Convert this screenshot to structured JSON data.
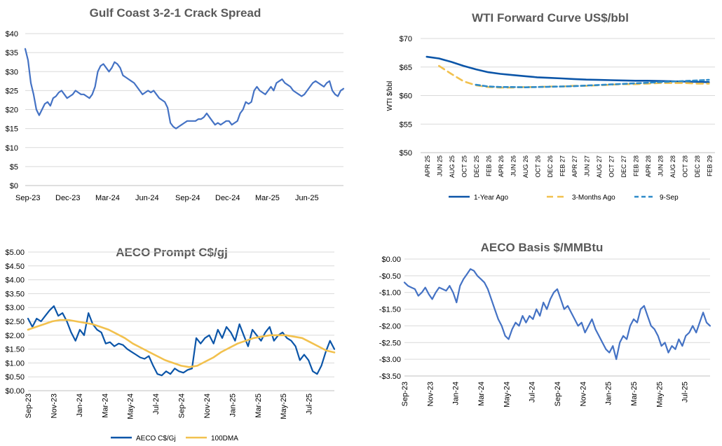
{
  "charts": [
    {
      "type": "line",
      "title": "Gulf Coast 3-2-1 Crack Spread",
      "ylim": [
        0,
        40
      ],
      "y_ticks": [
        "$0",
        "$5",
        "$10",
        "$15",
        "$20",
        "$25",
        "$30",
        "$35",
        "$40"
      ],
      "x_tick_labels": [
        "Sep-23",
        "Dec-23",
        "Mar-24",
        "Jun-24",
        "Sep-24",
        "Dec-24",
        "Mar-25",
        "Jun-25"
      ],
      "series": [
        {
          "color": "#4472C4",
          "values": [
            36,
            33,
            27,
            24,
            20,
            18.5,
            20,
            21.5,
            22,
            21,
            23,
            23.5,
            24.5,
            25,
            24,
            23,
            23.5,
            24,
            25,
            24.5,
            24,
            24,
            23.5,
            23,
            24,
            26,
            30,
            31.5,
            32,
            31,
            30,
            31,
            32.5,
            32,
            31,
            29,
            28.5,
            28,
            27.5,
            27,
            26,
            25,
            24,
            24.5,
            25,
            24.5,
            25,
            24,
            23,
            22.5,
            22,
            20.5,
            16.5,
            15.5,
            15,
            15.5,
            16,
            16.5,
            17,
            17,
            17,
            17,
            17.5,
            17.5,
            18,
            19,
            18,
            17,
            16,
            16.5,
            16,
            16.5,
            17,
            17,
            16,
            16.5,
            17,
            19,
            20,
            22,
            21.5,
            22,
            25,
            26,
            25,
            24.5,
            24,
            25,
            26,
            25,
            27,
            27.5,
            28,
            27,
            26.5,
            26,
            25,
            24.5,
            24,
            23.5,
            24,
            25,
            26,
            27,
            27.5,
            27,
            26.5,
            26,
            27,
            27.5,
            25,
            24,
            23.5,
            25,
            25.5
          ]
        }
      ]
    },
    {
      "type": "line",
      "title": "WTI Forward Curve US$/bbl",
      "ylabel": "WTI $/bbl",
      "ylim": [
        50,
        70
      ],
      "y_ticks": [
        "$50",
        "$55",
        "$60",
        "$65",
        "$70"
      ],
      "categories": [
        "APR 25",
        "JUN 25",
        "AUG 25",
        "OCT 25",
        "DEC 25",
        "FEB 26",
        "APR 26",
        "JUN 26",
        "AUG 26",
        "OCT 26",
        "DEC 26",
        "FEB 27",
        "APR 27",
        "JUN 27",
        "AUG 27",
        "OCT 27",
        "DEC 27",
        "FEB 28",
        "APR 28",
        "JUN 28",
        "AUG 28",
        "OCT 28",
        "DEC 28",
        "FEB 29"
      ],
      "series": [
        {
          "name": "1-Year Ago",
          "color": "#0B55A8",
          "dash": "",
          "values": [
            66.8,
            66.5,
            65.9,
            65.2,
            64.6,
            64.1,
            63.8,
            63.6,
            63.4,
            63.2,
            63.1,
            63.0,
            62.9,
            62.8,
            62.75,
            62.7,
            62.65,
            62.6,
            62.6,
            62.55,
            62.5,
            62.45,
            62.4,
            62.35
          ]
        },
        {
          "name": "3-Months Ago",
          "color": "#F2C14E",
          "dash": "9,6",
          "values": [
            null,
            65.2,
            63.8,
            62.5,
            61.8,
            61.5,
            61.4,
            61.4,
            61.5,
            61.5,
            61.6,
            61.6,
            61.7,
            61.7,
            61.8,
            61.9,
            62.0,
            62.0,
            62.1,
            62.2,
            62.2,
            62.2,
            62.1,
            62.1
          ]
        },
        {
          "name": "9-Sep",
          "color": "#2E8BC9",
          "dash": "6,4",
          "values": [
            null,
            null,
            null,
            null,
            61.9,
            61.6,
            61.5,
            61.5,
            61.45,
            61.5,
            61.55,
            61.6,
            61.65,
            61.75,
            61.85,
            61.95,
            62.05,
            62.15,
            62.25,
            62.35,
            62.45,
            62.55,
            62.65,
            62.75
          ]
        }
      ]
    },
    {
      "type": "line",
      "title": "AECO Prompt C$/gj",
      "ylim": [
        0,
        5
      ],
      "y_ticks": [
        "$0.00",
        "$0.50",
        "$1.00",
        "$1.50",
        "$2.00",
        "$2.50",
        "$3.00",
        "$3.50",
        "$4.00",
        "$4.50",
        "$5.00"
      ],
      "x_tick_labels": [
        "Sep-23",
        "Nov-23",
        "Jan-24",
        "Mar-24",
        "May-24",
        "Jul-24",
        "Sep-24",
        "Nov-24",
        "Jan-25",
        "Mar-25",
        "May-25",
        "Jul-25"
      ],
      "series": [
        {
          "name": "AECO C$/Gj",
          "color": "#0B55A8",
          "width": 2.2,
          "values": [
            2.6,
            2.3,
            2.6,
            2.5,
            2.7,
            2.9,
            3.05,
            2.7,
            2.8,
            2.5,
            2.1,
            1.8,
            2.2,
            2.0,
            2.8,
            2.4,
            2.2,
            2.1,
            1.7,
            1.75,
            1.6,
            1.7,
            1.65,
            1.5,
            1.4,
            1.3,
            1.2,
            1.15,
            1.25,
            0.9,
            0.6,
            0.55,
            0.7,
            0.6,
            0.8,
            0.7,
            0.65,
            0.75,
            0.8,
            1.9,
            1.7,
            1.9,
            2.0,
            1.7,
            2.2,
            1.9,
            2.3,
            2.1,
            1.8,
            2.4,
            2.0,
            1.6,
            2.2,
            2.0,
            1.8,
            2.1,
            2.3,
            1.8,
            2.0,
            2.1,
            1.9,
            1.8,
            1.6,
            1.1,
            1.3,
            1.1,
            0.7,
            0.6,
            0.9,
            1.4,
            1.8,
            1.5
          ]
        },
        {
          "name": "100DMA",
          "color": "#F2C14E",
          "width": 2.6,
          "values": [
            2.2,
            2.3,
            2.4,
            2.5,
            2.55,
            2.55,
            2.5,
            2.45,
            2.4,
            2.3,
            2.2,
            2.05,
            1.9,
            1.7,
            1.55,
            1.4,
            1.25,
            1.1,
            1.0,
            0.9,
            0.85,
            0.9,
            1.05,
            1.2,
            1.4,
            1.55,
            1.7,
            1.8,
            1.9,
            1.95,
            2.0,
            2.0,
            2.0,
            1.95,
            1.9,
            1.75,
            1.6,
            1.45,
            1.38
          ]
        }
      ]
    },
    {
      "type": "line",
      "title": "AECO Basis $/MMBtu",
      "ylim": [
        -3.5,
        0
      ],
      "y_ticks": [
        "-$3.50",
        "-$3.00",
        "-$2.50",
        "-$2.00",
        "-$1.50",
        "-$1.00",
        "-$0.50",
        "$0.00"
      ],
      "x_tick_labels": [
        "Sep-23",
        "Nov-23",
        "Jan-24",
        "Mar-24",
        "May-24",
        "Jul-24",
        "Sep-24",
        "Nov-24",
        "Jan-25",
        "Mar-25",
        "May-25",
        "Jul-25"
      ],
      "series": [
        {
          "color": "#4472C4",
          "values": [
            -0.7,
            -0.8,
            -0.85,
            -0.9,
            -1.1,
            -1.0,
            -0.85,
            -1.05,
            -1.2,
            -1.0,
            -0.85,
            -0.9,
            -0.95,
            -0.8,
            -1.0,
            -1.3,
            -0.8,
            -0.6,
            -0.45,
            -0.3,
            -0.35,
            -0.5,
            -0.6,
            -0.7,
            -0.9,
            -1.2,
            -1.5,
            -1.8,
            -2.0,
            -2.3,
            -2.4,
            -2.1,
            -1.9,
            -2.0,
            -1.7,
            -1.9,
            -1.7,
            -1.8,
            -1.5,
            -1.7,
            -1.3,
            -1.5,
            -1.2,
            -1.0,
            -0.9,
            -1.2,
            -1.5,
            -1.4,
            -1.6,
            -1.8,
            -2.0,
            -1.9,
            -2.2,
            -2.0,
            -1.8,
            -2.1,
            -2.3,
            -2.5,
            -2.7,
            -2.8,
            -2.6,
            -3.0,
            -2.5,
            -2.3,
            -2.4,
            -2.0,
            -1.8,
            -1.9,
            -1.5,
            -1.4,
            -1.7,
            -2.0,
            -2.1,
            -2.3,
            -2.6,
            -2.5,
            -2.8,
            -2.6,
            -2.7,
            -2.4,
            -2.6,
            -2.3,
            -2.2,
            -2.0,
            -2.2,
            -1.9,
            -1.6,
            -1.9,
            -2.0
          ]
        }
      ]
    }
  ]
}
